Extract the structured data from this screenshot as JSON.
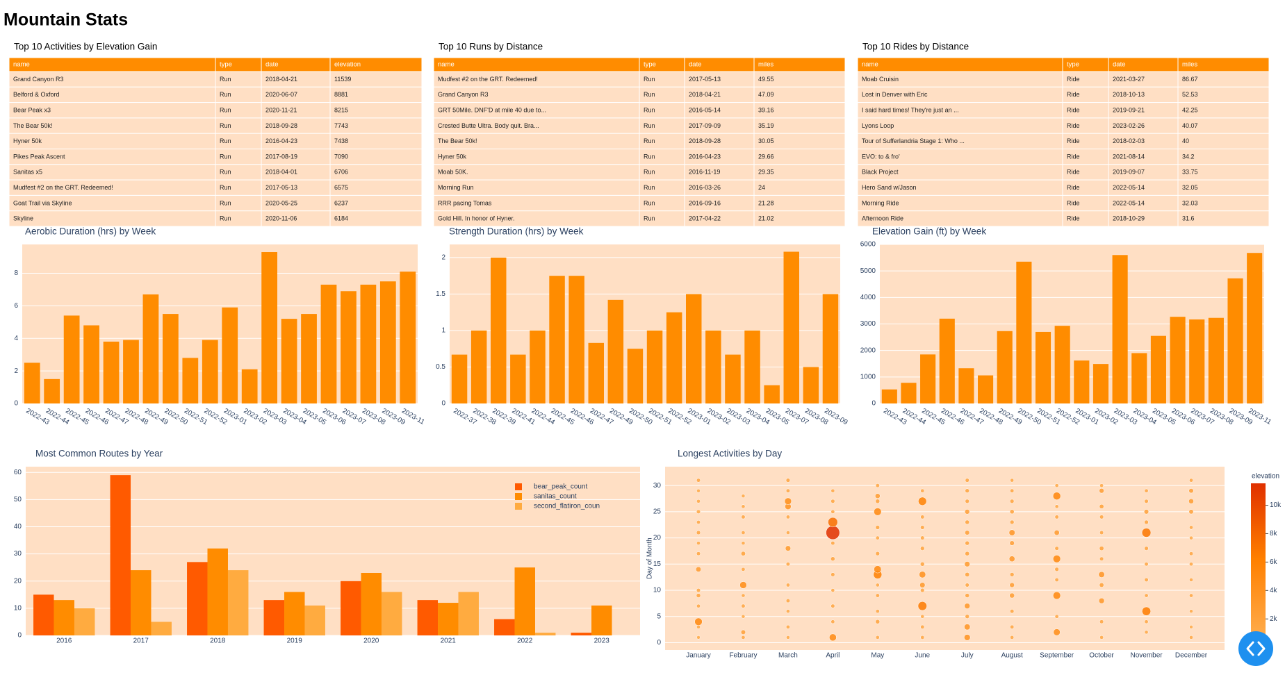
{
  "title": "Mountain Stats",
  "tables": [
    {
      "title": "Top 10 Activities by Elevation Gain",
      "columns": [
        "name",
        "type",
        "date",
        "elevation"
      ],
      "rows": [
        [
          "Grand Canyon R3",
          "Run",
          "2018-04-21",
          11539
        ],
        [
          "Belford & Oxford",
          "Run",
          "2020-06-07",
          8881
        ],
        [
          "Bear Peak x3",
          "Run",
          "2020-11-21",
          8215
        ],
        [
          "The Bear 50k!",
          "Run",
          "2018-09-28",
          7743
        ],
        [
          "Hyner 50k",
          "Run",
          "2016-04-23",
          7438
        ],
        [
          "Pikes Peak Ascent",
          "Run",
          "2017-08-19",
          7090
        ],
        [
          "Sanitas x5",
          "Run",
          "2018-04-01",
          6706
        ],
        [
          "Mudfest #2 on the GRT. Redeemed!",
          "Run",
          "2017-05-13",
          6575
        ],
        [
          "Goat Trail via Skyline",
          "Run",
          "2020-05-25",
          6237
        ],
        [
          "Skyline",
          "Run",
          "2020-11-06",
          6184
        ]
      ]
    },
    {
      "title": "Top 10 Runs by Distance",
      "columns": [
        "name",
        "type",
        "date",
        "miles"
      ],
      "rows": [
        [
          "Mudfest #2 on the GRT. Redeemed!",
          "Run",
          "2017-05-13",
          49.55
        ],
        [
          "Grand Canyon R3",
          "Run",
          "2018-04-21",
          47.09
        ],
        [
          "GRT 50Mile. DNF'D at mile 40 due to...",
          "Run",
          "2016-05-14",
          39.16
        ],
        [
          "Crested Butte Ultra. Body quit. Bra...",
          "Run",
          "2017-09-09",
          35.19
        ],
        [
          "The Bear 50k!",
          "Run",
          "2018-09-28",
          30.05
        ],
        [
          "Hyner 50k",
          "Run",
          "2016-04-23",
          29.66
        ],
        [
          "Moab 50K.",
          "Run",
          "2016-11-19",
          29.35
        ],
        [
          "Morning Run",
          "Run",
          "2016-03-26",
          24
        ],
        [
          "RRR pacing Tomas",
          "Run",
          "2016-09-16",
          21.28
        ],
        [
          "Gold Hill. In honor of Hyner.",
          "Run",
          "2017-04-22",
          21.02
        ]
      ]
    },
    {
      "title": "Top 10 Rides by Distance",
      "columns": [
        "name",
        "type",
        "date",
        "miles"
      ],
      "rows": [
        [
          "Moab Cruisin",
          "Ride",
          "2021-03-27",
          86.67
        ],
        [
          "Lost in Denver with Eric",
          "Ride",
          "2018-10-13",
          52.53
        ],
        [
          "I said hard times! They're just an ...",
          "Ride",
          "2019-09-21",
          42.25
        ],
        [
          "Lyons Loop",
          "Ride",
          "2023-02-26",
          40.07
        ],
        [
          "Tour of Sufferlandria Stage 1: Who ...",
          "Ride",
          "2018-02-03",
          40
        ],
        [
          "EVO: to & fro'",
          "Ride",
          "2021-08-14",
          34.2
        ],
        [
          "Black Project",
          "Ride",
          "2019-09-07",
          33.75
        ],
        [
          "Hero Sand w/Jason",
          "Ride",
          "2022-05-14",
          32.05
        ],
        [
          "Morning Ride",
          "Ride",
          "2022-05-14",
          32.03
        ],
        [
          "Afternoon Ride",
          "Ride",
          "2018-10-29",
          31.6
        ]
      ]
    }
  ],
  "chart_data": [
    {
      "type": "bar",
      "title": "Aerobic Duration (hrs) by Week",
      "categories": [
        "2022-43",
        "2022-44",
        "2022-45",
        "2022-46",
        "2022-47",
        "2022-48",
        "2022-49",
        "2022-50",
        "2022-51",
        "2022-52",
        "2023-01",
        "2023-02",
        "2023-03",
        "2023-04",
        "2023-05",
        "2023-06",
        "2023-07",
        "2023-08",
        "2023-09",
        "2023-11"
      ],
      "values": [
        2.5,
        1.5,
        5.4,
        4.8,
        3.8,
        3.9,
        6.7,
        5.5,
        2.8,
        3.9,
        5.9,
        2.1,
        9.3,
        5.2,
        5.5,
        7.3,
        6.9,
        7.3,
        7.5,
        8.1
      ],
      "color": "#ff8c00",
      "ylim": [
        0,
        9.77
      ],
      "yticks": [
        0,
        2,
        4,
        6,
        8
      ],
      "grid": true
    },
    {
      "type": "bar",
      "title": "Strength Duration (hrs) by Week",
      "categories": [
        "2022-37",
        "2022-38",
        "2022-39",
        "2022-41",
        "2022-44",
        "2022-45",
        "2022-46",
        "2022-47",
        "2022-49",
        "2022-50",
        "2022-51",
        "2022-52",
        "2023-01",
        "2023-02",
        "2023-03",
        "2023-04",
        "2023-05",
        "2023-07",
        "2023-08",
        "2023-09"
      ],
      "values": [
        0.67,
        1,
        2,
        0.67,
        1,
        1.75,
        1.75,
        0.83,
        1.42,
        0.75,
        1,
        1.25,
        1.5,
        1,
        0.67,
        1,
        0.25,
        2.08,
        0.5,
        1.5
      ],
      "color": "#ff8c00",
      "ylim": [
        0,
        2.18
      ],
      "yticks": [
        0,
        0.5,
        1,
        1.5,
        2
      ],
      "grid": true
    },
    {
      "type": "bar",
      "title": "Elevation Gain (ft) by Week",
      "categories": [
        "2022-43",
        "2022-44",
        "2022-45",
        "2022-46",
        "2022-47",
        "2022-48",
        "2022-49",
        "2022-50",
        "2022-51",
        "2022-52",
        "2023-01",
        "2023-02",
        "2023-03",
        "2023-04",
        "2023-05",
        "2023-06",
        "2023-07",
        "2023-08",
        "2023-09",
        "2023-11"
      ],
      "values": [
        530,
        780,
        1850,
        3200,
        1330,
        1060,
        2730,
        5350,
        2700,
        2930,
        1620,
        1490,
        5600,
        1900,
        2550,
        3270,
        3170,
        3230,
        4720,
        5680
      ],
      "color": "#ff8c00",
      "ylim": [
        0,
        6000
      ],
      "yticks": [
        0,
        1000,
        2000,
        3000,
        4000,
        5000,
        6000
      ],
      "grid": true
    },
    {
      "type": "grouped_bar",
      "title": "Most Common Routes by Year",
      "categories": [
        "2016",
        "2017",
        "2018",
        "2019",
        "2020",
        "2021",
        "2022",
        "2023"
      ],
      "series": [
        {
          "name": "bear_peak_count",
          "color": "#ff5a00",
          "values": [
            15,
            59,
            27,
            13,
            20,
            13,
            6,
            1
          ]
        },
        {
          "name": "sanitas_count",
          "color": "#ff8c00",
          "values": [
            13,
            24,
            32,
            16,
            23,
            12,
            25,
            11
          ]
        },
        {
          "name": "second_flatiron_coun",
          "color": "#ffab40",
          "values": [
            10,
            5,
            24,
            11,
            16,
            16,
            1,
            0
          ]
        }
      ],
      "ylim": [
        0,
        62.1
      ],
      "yticks": [
        0,
        10,
        20,
        30,
        40,
        50,
        60
      ],
      "grid": true,
      "legend": "top-right"
    },
    {
      "type": "scatter",
      "title": "Longest Activities by Day",
      "ylabel": "Day of Month",
      "categories": [
        "January",
        "February",
        "March",
        "April",
        "May",
        "June",
        "July",
        "August",
        "September",
        "October",
        "November",
        "December"
      ],
      "x": [
        "January",
        "January",
        "January",
        "January",
        "January",
        "January",
        "January",
        "January",
        "January",
        "January",
        "January",
        "January",
        "January",
        "January",
        "January",
        "February",
        "February",
        "February",
        "February",
        "February",
        "February",
        "February",
        "February",
        "February",
        "February",
        "February",
        "February",
        "February",
        "March",
        "March",
        "March",
        "March",
        "March",
        "March",
        "March",
        "March",
        "March",
        "March",
        "March",
        "March",
        "March",
        "April",
        "April",
        "April",
        "April",
        "April",
        "April",
        "April",
        "April",
        "April",
        "April",
        "April",
        "April",
        "May",
        "May",
        "May",
        "May",
        "May",
        "May",
        "May",
        "May",
        "May",
        "May",
        "May",
        "May",
        "May",
        "May",
        "June",
        "June",
        "June",
        "June",
        "June",
        "June",
        "June",
        "June",
        "June",
        "June",
        "June",
        "June",
        "June",
        "June",
        "July",
        "July",
        "July",
        "July",
        "July",
        "July",
        "July",
        "July",
        "July",
        "July",
        "July",
        "July",
        "July",
        "July",
        "July",
        "July",
        "August",
        "August",
        "August",
        "August",
        "August",
        "August",
        "August",
        "August",
        "August",
        "August",
        "August",
        "August",
        "August",
        "August",
        "September",
        "September",
        "September",
        "September",
        "September",
        "September",
        "September",
        "September",
        "September",
        "September",
        "September",
        "September",
        "October",
        "October",
        "October",
        "October",
        "October",
        "October",
        "October",
        "October",
        "October",
        "October",
        "October",
        "October",
        "November",
        "November",
        "November",
        "November",
        "November",
        "November",
        "November",
        "November",
        "November",
        "November",
        "November",
        "November",
        "December",
        "December",
        "December",
        "December",
        "December",
        "December",
        "December",
        "December",
        "December",
        "December",
        "December",
        "December",
        "December"
      ],
      "y": [
        1,
        3,
        4,
        7,
        9,
        10,
        14,
        17,
        19,
        21,
        23,
        25,
        27,
        29,
        31,
        1,
        2,
        5,
        7,
        9,
        11,
        14,
        17,
        19,
        21,
        24,
        26,
        28,
        1,
        3,
        6,
        8,
        11,
        15,
        18,
        21,
        24,
        26,
        27,
        29,
        31,
        1,
        4,
        7,
        10,
        13,
        16,
        19,
        21,
        23,
        25,
        27,
        29,
        1,
        4,
        6,
        9,
        11,
        13,
        14,
        17,
        20,
        22,
        25,
        27,
        28,
        30,
        1,
        3,
        5,
        7,
        10,
        11,
        13,
        15,
        18,
        20,
        22,
        24,
        27,
        29,
        1,
        3,
        5,
        7,
        9,
        11,
        13,
        15,
        17,
        19,
        21,
        23,
        25,
        27,
        29,
        31,
        1,
        3,
        6,
        9,
        11,
        13,
        16,
        19,
        21,
        23,
        25,
        27,
        29,
        31,
        2,
        5,
        9,
        12,
        14,
        16,
        18,
        21,
        24,
        26,
        28,
        30,
        1,
        4,
        8,
        11,
        13,
        16,
        18,
        21,
        24,
        26,
        29,
        30,
        2,
        4,
        6,
        9,
        12,
        15,
        18,
        21,
        23,
        25,
        27,
        29,
        1,
        3,
        6,
        9,
        12,
        15,
        17,
        20,
        22,
        25,
        27,
        29,
        31
      ],
      "elevation": [
        1000,
        1200,
        5200,
        1300,
        1800,
        1500,
        2800,
        1400,
        1200,
        1600,
        1300,
        1500,
        1200,
        1100,
        1400,
        1300,
        2200,
        1100,
        1400,
        1200,
        4600,
        1300,
        2000,
        1200,
        1300,
        1400,
        1200,
        1100,
        1100,
        1300,
        1200,
        1500,
        1300,
        1400,
        3000,
        1200,
        1300,
        3800,
        4500,
        1400,
        1600,
        4800,
        1300,
        1400,
        1200,
        1500,
        1800,
        1400,
        11539,
        7400,
        1300,
        1500,
        1200,
        1200,
        1800,
        1300,
        1400,
        1200,
        6200,
        5000,
        1600,
        1300,
        1700,
        5200,
        1800,
        2600,
        1400,
        1300,
        1400,
        1200,
        6600,
        1600,
        3000,
        4200,
        1800,
        1700,
        1500,
        1600,
        1400,
        6000,
        1300,
        3800,
        3600,
        1700,
        3200,
        1800,
        1500,
        2000,
        3000,
        1900,
        1800,
        2200,
        1800,
        2400,
        1600,
        1700,
        1500,
        1300,
        1400,
        1500,
        2600,
        2400,
        1700,
        3400,
        2300,
        3600,
        1700,
        1900,
        1600,
        1400,
        1200,
        4400,
        1300,
        5200,
        1400,
        1600,
        5200,
        1500,
        2800,
        1400,
        1200,
        5400,
        1200,
        1200,
        1400,
        3200,
        2000,
        3600,
        1500,
        2000,
        1400,
        1500,
        2000,
        2400,
        1200,
        1200,
        1300,
        6400,
        1300,
        1500,
        1400,
        1600,
        6800,
        1700,
        2200,
        1500,
        1300,
        1200,
        1000,
        1100,
        1300,
        1200,
        1300,
        1400,
        1200,
        1300,
        2100,
        2600,
        2200,
        1300
      ],
      "ylim": [
        -1.4,
        33.6
      ],
      "yticks": [
        0,
        5,
        10,
        15,
        20,
        25,
        30
      ],
      "grid": true,
      "colorbar": {
        "title": "elevation",
        "range": [
          840,
          11539
        ],
        "ticks": [
          {
            "value": 2000,
            "label": "2k"
          },
          {
            "value": 4000,
            "label": "4k"
          },
          {
            "value": 6000,
            "label": "6k"
          },
          {
            "value": 8000,
            "label": "8k"
          },
          {
            "value": 10000,
            "label": "10k"
          }
        ],
        "colors": [
          "#ffab4a",
          "#ff8000",
          "#e03000"
        ]
      }
    }
  ]
}
